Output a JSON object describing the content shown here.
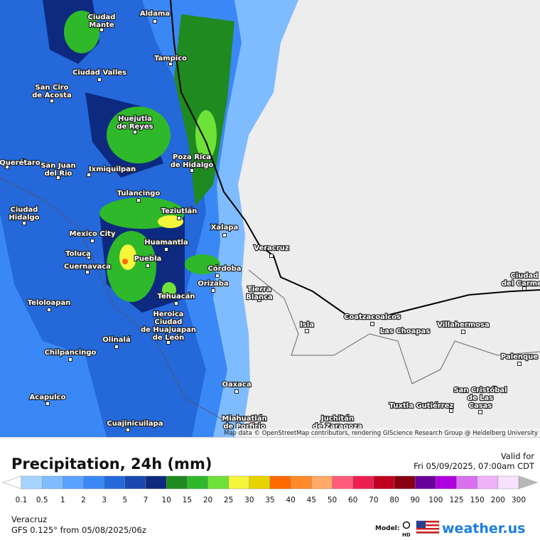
{
  "map": {
    "cities": [
      [
        "Ciudad",
        "Mante"
      ],
      [
        "Aldama"
      ],
      [
        "Tampico"
      ],
      [
        "Ciudad Valles"
      ],
      [
        "San Ciro",
        "de Acosta"
      ],
      [
        "Huejutla",
        "de Reyes"
      ],
      [
        "Poza Rica",
        "de Hidalgo"
      ],
      [
        "Querétaro"
      ],
      [
        "San Juan",
        "del Rio"
      ],
      [
        "Ixmiquilpan"
      ],
      [
        "Tulancingo"
      ],
      [
        "Teziutlán"
      ],
      [
        "Ciudad",
        "Hidalgo"
      ],
      [
        "Xalapa"
      ],
      [
        "Mexico City"
      ],
      [
        "Huamantla"
      ],
      [
        "Veracruz"
      ],
      [
        "Toluca"
      ],
      [
        "Puebla"
      ],
      [
        "Cuernavaca"
      ],
      [
        "Córdoba"
      ],
      [
        "Orizaba"
      ],
      [
        "Tehuacán"
      ],
      [
        "Tierra",
        "Blanca"
      ],
      [
        "Teloloapan"
      ],
      [
        "Heroica",
        "Ciudad",
        "de Huajuapan",
        "de León"
      ],
      [
        "Olinalá"
      ],
      [
        "Chilpancingo"
      ],
      [
        "Isla"
      ],
      [
        "Coatzacoalcos"
      ],
      [
        "Las Choapas"
      ],
      [
        "Villahermosa"
      ],
      [
        "Ciudad",
        "del Carmen"
      ],
      [
        "Palenque"
      ],
      [
        "Oaxaca"
      ],
      [
        "Acapulco"
      ],
      [
        "Cuajinicuilapa"
      ],
      [
        "Miahuatlán",
        "de Porfirio"
      ],
      [
        "Juchitán",
        "de Zaragoza"
      ],
      [
        "Tuxtla Gutiérrez"
      ],
      [
        "San Cristóbal",
        "de Las",
        "Casas"
      ]
    ],
    "attribution": "Map data © OpenStreetMap contributors, rendering GIScience Research Group @ Heidelberg University"
  },
  "legend": {
    "title": "Precipitation, 24h (mm)",
    "valid_label": "Valid for",
    "valid_time": "Fri 05/09/2025, 07:00am CDT",
    "ticks": [
      0.1,
      0.5,
      1,
      2,
      3,
      5,
      7,
      10,
      15,
      20,
      25,
      30,
      35,
      40,
      45,
      50,
      60,
      70,
      80,
      90,
      100,
      125,
      150,
      200,
      300
    ],
    "colors": [
      "#a6d4ff",
      "#7fbcff",
      "#5aa2ff",
      "#3a88f5",
      "#2468da",
      "#1848b0",
      "#0d2a80",
      "#1f8a1f",
      "#2fb82a",
      "#6fe23a",
      "#f5f53c",
      "#e6d300",
      "#ff6a00",
      "#ff8a2a",
      "#ffaa66",
      "#ff5c7a",
      "#ec2050",
      "#c0001e",
      "#880012",
      "#6a0099",
      "#b000e0",
      "#d870f0",
      "#eeb2f8",
      "#f6e2ff"
    ],
    "low_color": "#ffffff",
    "high_color": "#b8b8b8"
  },
  "footer": {
    "region": "Veracruz",
    "model_run": "GFS 0.125° from  05/08/2025/06z",
    "model_label": "Model:",
    "model_badge": "HD",
    "brand": "weather.us"
  }
}
